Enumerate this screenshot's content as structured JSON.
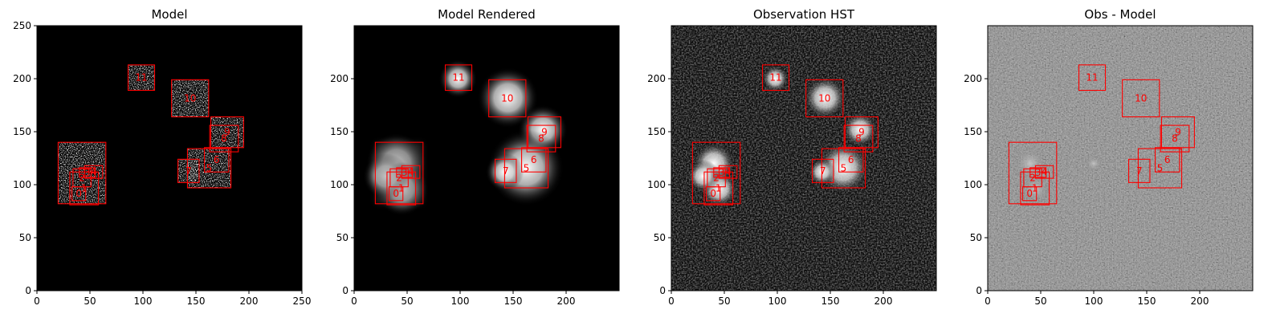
{
  "chart_data": [
    {
      "type": "heatmap",
      "title": "Model",
      "xlim": [
        0,
        250
      ],
      "ylim": [
        0,
        250
      ],
      "xticks": [
        0,
        50,
        100,
        150,
        200,
        250
      ],
      "yticks": [
        0,
        50,
        100,
        150,
        200,
        250
      ],
      "colormap": "gray",
      "image": "binary speckle clusters (model)",
      "boxes": [
        {
          "label": "11",
          "x0": 86,
          "x1": 111,
          "y0": 189,
          "y1": 213
        },
        {
          "label": "10",
          "x0": 127,
          "x1": 162,
          "y0": 164,
          "y1": 199
        },
        {
          "label": "9",
          "x0": 164,
          "x1": 195,
          "y0": 135,
          "y1": 164
        },
        {
          "label": "8",
          "x0": 163,
          "x1": 190,
          "y0": 131,
          "y1": 156
        },
        {
          "label": "6",
          "x0": 158,
          "x1": 181,
          "y0": 112,
          "y1": 135
        },
        {
          "label": "5",
          "x0": 142,
          "x1": 183,
          "y0": 97,
          "y1": 134
        },
        {
          "label": "7",
          "x0": 133,
          "x1": 153,
          "y0": 102,
          "y1": 124
        },
        {
          "label": "4",
          "x0": 45,
          "x1": 62,
          "y0": 106,
          "y1": 118
        },
        {
          "label": "3",
          "x0": 40,
          "x1": 55,
          "y0": 107,
          "y1": 116
        },
        {
          "label": "2",
          "x0": 34,
          "x1": 51,
          "y0": 98,
          "y1": 115
        },
        {
          "label": "1",
          "x0": 31,
          "x1": 58,
          "y0": 81,
          "y1": 112
        },
        {
          "label": "0",
          "x0": 33,
          "x1": 46,
          "y0": 85,
          "y1": 98
        },
        {
          "label": "",
          "x0": 20,
          "x1": 65,
          "y0": 82,
          "y1": 140
        }
      ]
    },
    {
      "type": "heatmap",
      "title": "Model Rendered",
      "xlim": [
        0,
        250
      ],
      "ylim": [
        0,
        250
      ],
      "xticks": [
        0,
        50,
        100,
        150,
        200
      ],
      "yticks": [
        0,
        50,
        100,
        150,
        200
      ],
      "colormap": "gray",
      "image": "smoothed model sources",
      "boxes": [
        {
          "label": "11",
          "x0": 86,
          "x1": 111,
          "y0": 189,
          "y1": 213
        },
        {
          "label": "10",
          "x0": 127,
          "x1": 162,
          "y0": 164,
          "y1": 199
        },
        {
          "label": "9",
          "x0": 164,
          "x1": 195,
          "y0": 135,
          "y1": 164
        },
        {
          "label": "8",
          "x0": 163,
          "x1": 190,
          "y0": 131,
          "y1": 156
        },
        {
          "label": "6",
          "x0": 158,
          "x1": 181,
          "y0": 112,
          "y1": 135
        },
        {
          "label": "5",
          "x0": 142,
          "x1": 183,
          "y0": 97,
          "y1": 134
        },
        {
          "label": "7",
          "x0": 133,
          "x1": 153,
          "y0": 102,
          "y1": 124
        },
        {
          "label": "4",
          "x0": 45,
          "x1": 62,
          "y0": 106,
          "y1": 118
        },
        {
          "label": "3",
          "x0": 40,
          "x1": 55,
          "y0": 107,
          "y1": 116
        },
        {
          "label": "2",
          "x0": 34,
          "x1": 51,
          "y0": 98,
          "y1": 115
        },
        {
          "label": "1",
          "x0": 31,
          "x1": 58,
          "y0": 81,
          "y1": 112
        },
        {
          "label": "0",
          "x0": 33,
          "x1": 46,
          "y0": 85,
          "y1": 98
        },
        {
          "label": "",
          "x0": 20,
          "x1": 65,
          "y0": 82,
          "y1": 140
        }
      ]
    },
    {
      "type": "heatmap",
      "title": "Observation HST",
      "xlim": [
        0,
        250
      ],
      "ylim": [
        0,
        250
      ],
      "xticks": [
        0,
        50,
        100,
        150,
        200
      ],
      "yticks": [
        0,
        50,
        100,
        150,
        200
      ],
      "colormap": "gray",
      "image": "noisy observation",
      "boxes": [
        {
          "label": "11",
          "x0": 86,
          "x1": 111,
          "y0": 189,
          "y1": 213
        },
        {
          "label": "10",
          "x0": 127,
          "x1": 162,
          "y0": 164,
          "y1": 199
        },
        {
          "label": "9",
          "x0": 164,
          "x1": 195,
          "y0": 135,
          "y1": 164
        },
        {
          "label": "8",
          "x0": 163,
          "x1": 190,
          "y0": 131,
          "y1": 156
        },
        {
          "label": "6",
          "x0": 158,
          "x1": 181,
          "y0": 112,
          "y1": 135
        },
        {
          "label": "5",
          "x0": 142,
          "x1": 183,
          "y0": 97,
          "y1": 134
        },
        {
          "label": "7",
          "x0": 133,
          "x1": 153,
          "y0": 102,
          "y1": 124
        },
        {
          "label": "4",
          "x0": 45,
          "x1": 62,
          "y0": 106,
          "y1": 118
        },
        {
          "label": "3",
          "x0": 40,
          "x1": 55,
          "y0": 107,
          "y1": 116
        },
        {
          "label": "2",
          "x0": 34,
          "x1": 51,
          "y0": 98,
          "y1": 115
        },
        {
          "label": "1",
          "x0": 31,
          "x1": 58,
          "y0": 81,
          "y1": 112
        },
        {
          "label": "0",
          "x0": 33,
          "x1": 46,
          "y0": 85,
          "y1": 98
        },
        {
          "label": "",
          "x0": 20,
          "x1": 65,
          "y0": 82,
          "y1": 140
        }
      ]
    },
    {
      "type": "heatmap",
      "title": "Obs - Model",
      "xlim": [
        0,
        250
      ],
      "ylim": [
        0,
        250
      ],
      "xticks": [
        0,
        50,
        100,
        150,
        200
      ],
      "yticks": [
        0,
        50,
        100,
        150,
        200
      ],
      "colormap": "gray",
      "image": "residual",
      "boxes": [
        {
          "label": "11",
          "x0": 86,
          "x1": 111,
          "y0": 189,
          "y1": 213
        },
        {
          "label": "10",
          "x0": 127,
          "x1": 162,
          "y0": 164,
          "y1": 199
        },
        {
          "label": "9",
          "x0": 164,
          "x1": 195,
          "y0": 135,
          "y1": 164
        },
        {
          "label": "8",
          "x0": 163,
          "x1": 190,
          "y0": 131,
          "y1": 156
        },
        {
          "label": "6",
          "x0": 158,
          "x1": 181,
          "y0": 112,
          "y1": 135
        },
        {
          "label": "5",
          "x0": 142,
          "x1": 183,
          "y0": 97,
          "y1": 134
        },
        {
          "label": "7",
          "x0": 133,
          "x1": 153,
          "y0": 102,
          "y1": 124
        },
        {
          "label": "4",
          "x0": 45,
          "x1": 62,
          "y0": 106,
          "y1": 118
        },
        {
          "label": "3",
          "x0": 40,
          "x1": 55,
          "y0": 107,
          "y1": 116
        },
        {
          "label": "2",
          "x0": 34,
          "x1": 51,
          "y0": 98,
          "y1": 115
        },
        {
          "label": "1",
          "x0": 31,
          "x1": 58,
          "y0": 81,
          "y1": 112
        },
        {
          "label": "0",
          "x0": 33,
          "x1": 46,
          "y0": 85,
          "y1": 98
        },
        {
          "label": "",
          "x0": 20,
          "x1": 65,
          "y0": 82,
          "y1": 140
        }
      ]
    }
  ],
  "colors": {
    "box": "#ff0000",
    "axis": "#000000",
    "background": "#ffffff"
  }
}
